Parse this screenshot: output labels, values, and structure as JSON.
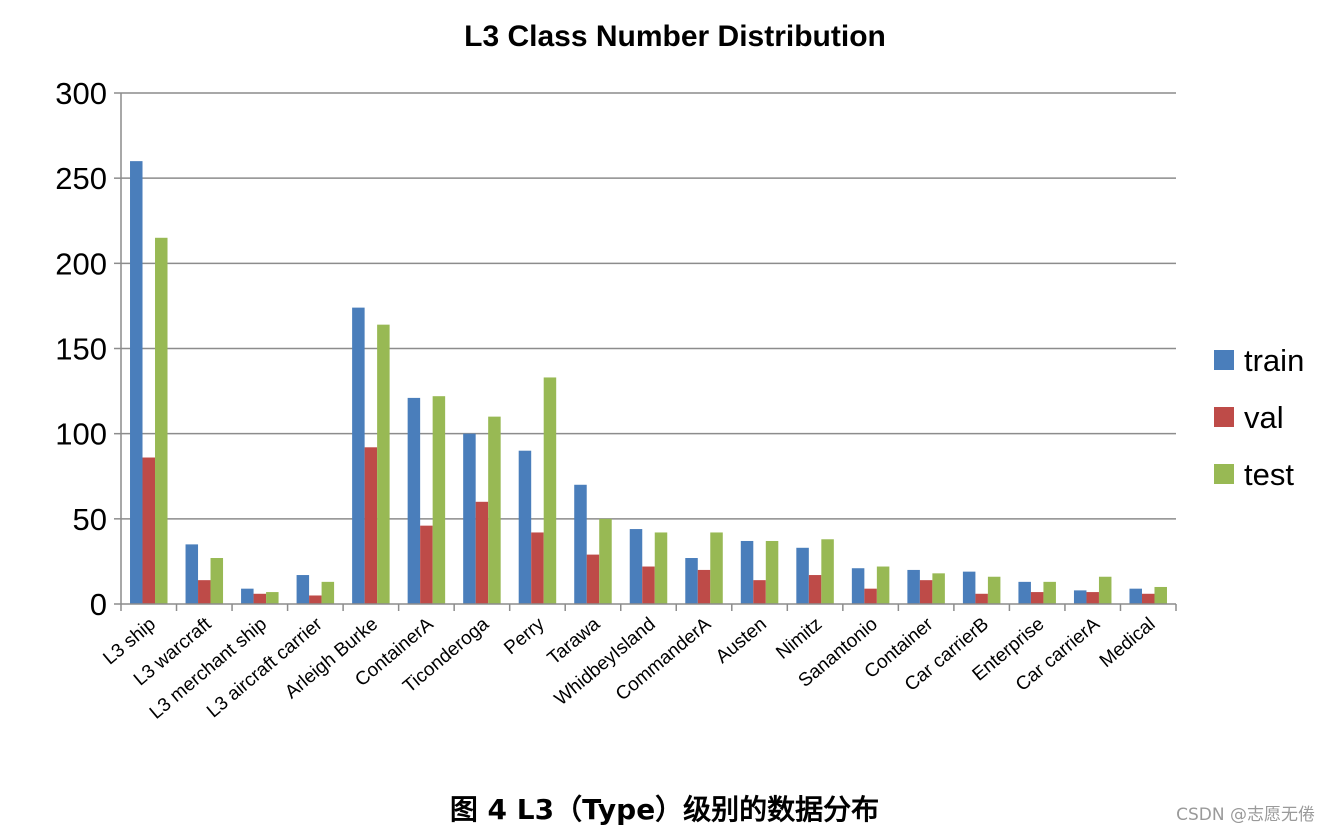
{
  "chart_data": {
    "type": "bar",
    "title": "L3 Class Number Distribution",
    "xlabel": "",
    "ylabel": "",
    "ylim": [
      0,
      300
    ],
    "yticks": [
      0,
      50,
      100,
      150,
      200,
      250,
      300
    ],
    "grid": true,
    "legend_position": "right",
    "categories": [
      "L3 ship",
      "L3 warcraft",
      "L3 merchant ship",
      "L3 aircraft carrier",
      "Arleigh Burke",
      "ContainerA",
      "Ticonderoga",
      "Perry",
      "Tarawa",
      "WhidbeyIsland",
      "CommanderA",
      "Austen",
      "Nimitz",
      "Sanantonio",
      "Container",
      "Car carrierB",
      "Enterprise",
      "Car carrierA",
      "Medical"
    ],
    "series": [
      {
        "name": "train",
        "color": "#4a7ebb",
        "values": [
          260,
          35,
          9,
          17,
          174,
          121,
          100,
          90,
          70,
          44,
          27,
          37,
          33,
          21,
          20,
          19,
          13,
          8,
          9
        ]
      },
      {
        "name": "val",
        "color": "#be4b48",
        "values": [
          86,
          14,
          6,
          5,
          92,
          46,
          60,
          42,
          29,
          22,
          20,
          14,
          17,
          9,
          14,
          6,
          7,
          7,
          6
        ]
      },
      {
        "name": "test",
        "color": "#98b954",
        "values": [
          215,
          27,
          7,
          13,
          164,
          122,
          110,
          133,
          50,
          42,
          42,
          37,
          38,
          22,
          18,
          16,
          13,
          16,
          10
        ]
      }
    ]
  },
  "caption": "图 4 L3（Type）级别的数据分布",
  "watermark": "CSDN @志愿无倦"
}
